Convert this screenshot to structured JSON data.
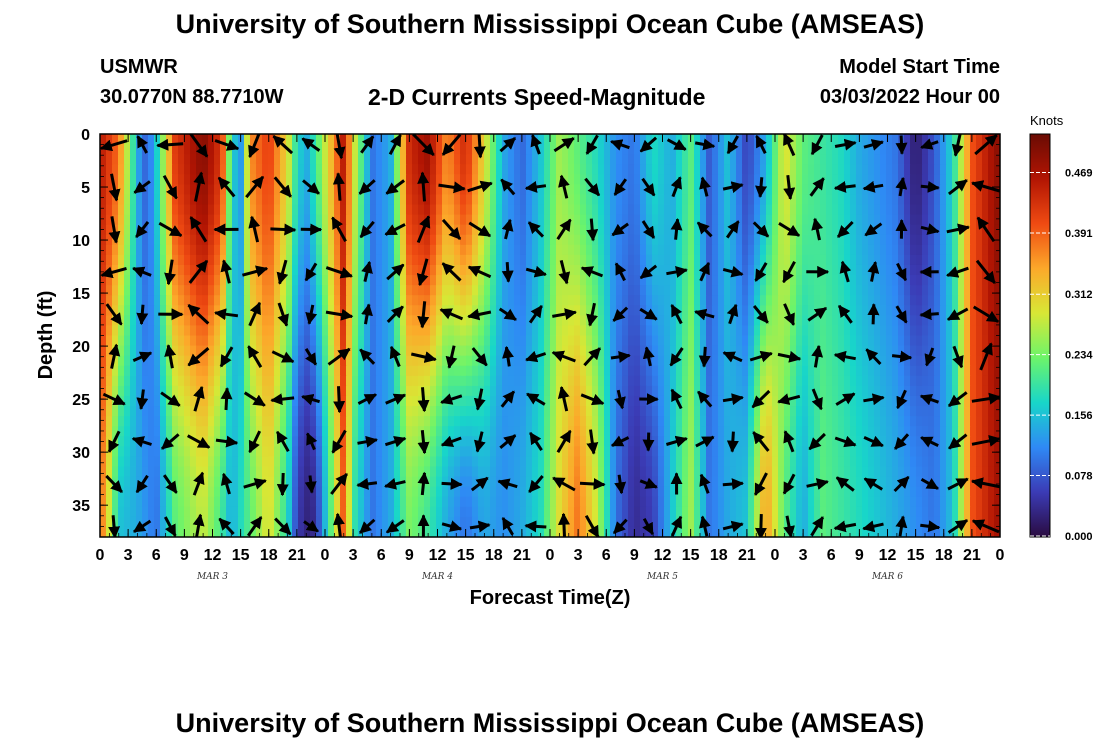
{
  "header": {
    "title": "University of Southern Mississippi Ocean Cube (AMSEAS)",
    "station": "USMWR",
    "coordinates": "30.0770N  88.7710W",
    "subtitle": "2-D Currents Speed-Magnitude",
    "model_start_label": "Model Start Time",
    "model_start_value": "03/03/2022 Hour 00"
  },
  "footer": {
    "title": "University of Southern Mississippi Ocean Cube (AMSEAS)"
  },
  "colorbar": {
    "units": "Knots",
    "ticks": [
      "0.000",
      "0.078",
      "0.156",
      "0.234",
      "0.312",
      "0.391",
      "0.469"
    ],
    "min": 0,
    "max": 0.52,
    "colors": [
      "#2a0b40",
      "#3b3bb5",
      "#2f89f5",
      "#18d6c9",
      "#6cf46a",
      "#d8e735",
      "#fca82a",
      "#ef4a12",
      "#b21503",
      "#6a0b03"
    ]
  },
  "chart_data": {
    "type": "heatmap",
    "xlabel": "Forecast Time(Z)",
    "ylabel": "Depth (ft)",
    "x_range_hours": [
      0,
      96
    ],
    "y_range_ft": [
      0,
      38
    ],
    "y_reversed": true,
    "x_ticks": [
      "0",
      "3",
      "6",
      "9",
      "12",
      "15",
      "18",
      "21",
      "0",
      "3",
      "6",
      "9",
      "12",
      "15",
      "18",
      "21",
      "0",
      "3",
      "6",
      "9",
      "12",
      "15",
      "18",
      "21",
      "0",
      "3",
      "6",
      "9",
      "12",
      "15",
      "18",
      "21",
      "0"
    ],
    "y_ticks": [
      "0",
      "5",
      "10",
      "15",
      "20",
      "25",
      "30",
      "35"
    ],
    "y_tick_values": [
      0,
      5,
      10,
      15,
      20,
      25,
      30,
      35
    ],
    "day_labels": [
      {
        "label": "MAR 3",
        "hour": 12
      },
      {
        "label": "MAR 4",
        "hour": 36
      },
      {
        "label": "MAR 5",
        "hour": 60
      },
      {
        "label": "MAR 6",
        "hour": 84
      }
    ],
    "speed_profile_knots": [
      {
        "hour": 0,
        "surface": 0.46,
        "bottom": 0.4
      },
      {
        "hour": 2,
        "surface": 0.38,
        "bottom": 0.16
      },
      {
        "hour": 4,
        "surface": 0.14,
        "bottom": 0.14
      },
      {
        "hour": 5,
        "surface": 0.08,
        "bottom": 0.12
      },
      {
        "hour": 6,
        "surface": 0.16,
        "bottom": 0.1
      },
      {
        "hour": 8,
        "surface": 0.42,
        "bottom": 0.22
      },
      {
        "hour": 11,
        "surface": 0.5,
        "bottom": 0.28
      },
      {
        "hour": 13,
        "surface": 0.42,
        "bottom": 0.2
      },
      {
        "hour": 14,
        "surface": 0.18,
        "bottom": 0.14
      },
      {
        "hour": 15,
        "surface": 0.12,
        "bottom": 0.18
      },
      {
        "hour": 16,
        "surface": 0.36,
        "bottom": 0.22
      },
      {
        "hour": 18,
        "surface": 0.42,
        "bottom": 0.3
      },
      {
        "hour": 20,
        "surface": 0.3,
        "bottom": 0.18
      },
      {
        "hour": 21,
        "surface": 0.18,
        "bottom": 0.06
      },
      {
        "hour": 22,
        "surface": 0.14,
        "bottom": 0.03
      },
      {
        "hour": 23,
        "surface": 0.2,
        "bottom": 0.04
      },
      {
        "hour": 25,
        "surface": 0.36,
        "bottom": 0.26
      },
      {
        "hour": 26,
        "surface": 0.46,
        "bottom": 0.4
      },
      {
        "hour": 27,
        "surface": 0.3,
        "bottom": 0.2
      },
      {
        "hour": 29,
        "surface": 0.1,
        "bottom": 0.1
      },
      {
        "hour": 31,
        "surface": 0.14,
        "bottom": 0.14
      },
      {
        "hour": 33,
        "surface": 0.44,
        "bottom": 0.24
      },
      {
        "hour": 35,
        "surface": 0.48,
        "bottom": 0.2
      },
      {
        "hour": 37,
        "surface": 0.36,
        "bottom": 0.14
      },
      {
        "hour": 39,
        "surface": 0.44,
        "bottom": 0.1
      },
      {
        "hour": 41,
        "surface": 0.3,
        "bottom": 0.14
      },
      {
        "hour": 43,
        "surface": 0.14,
        "bottom": 0.12
      },
      {
        "hour": 45,
        "surface": 0.09,
        "bottom": 0.14
      },
      {
        "hour": 47,
        "surface": 0.16,
        "bottom": 0.18
      },
      {
        "hour": 49,
        "surface": 0.26,
        "bottom": 0.3
      },
      {
        "hour": 51,
        "surface": 0.22,
        "bottom": 0.38
      },
      {
        "hour": 53,
        "surface": 0.18,
        "bottom": 0.28
      },
      {
        "hour": 55,
        "surface": 0.12,
        "bottom": 0.1
      },
      {
        "hour": 57,
        "surface": 0.1,
        "bottom": 0.04
      },
      {
        "hour": 59,
        "surface": 0.18,
        "bottom": 0.06
      },
      {
        "hour": 61,
        "surface": 0.14,
        "bottom": 0.16
      },
      {
        "hour": 63,
        "surface": 0.22,
        "bottom": 0.26
      },
      {
        "hour": 65,
        "surface": 0.08,
        "bottom": 0.1
      },
      {
        "hour": 67,
        "surface": 0.16,
        "bottom": 0.14
      },
      {
        "hour": 69,
        "surface": 0.06,
        "bottom": 0.16
      },
      {
        "hour": 71,
        "surface": 0.14,
        "bottom": 0.36
      },
      {
        "hour": 73,
        "surface": 0.3,
        "bottom": 0.22
      },
      {
        "hour": 75,
        "surface": 0.22,
        "bottom": 0.14
      },
      {
        "hour": 77,
        "surface": 0.2,
        "bottom": 0.22
      },
      {
        "hour": 79,
        "surface": 0.18,
        "bottom": 0.2
      },
      {
        "hour": 81,
        "surface": 0.14,
        "bottom": 0.18
      },
      {
        "hour": 83,
        "surface": 0.12,
        "bottom": 0.16
      },
      {
        "hour": 85,
        "surface": 0.1,
        "bottom": 0.14
      },
      {
        "hour": 87,
        "surface": 0.02,
        "bottom": 0.12
      },
      {
        "hour": 89,
        "surface": 0.08,
        "bottom": 0.1
      },
      {
        "hour": 91,
        "surface": 0.18,
        "bottom": 0.16
      },
      {
        "hour": 93,
        "surface": 0.4,
        "bottom": 0.4
      },
      {
        "hour": 96,
        "surface": 0.5,
        "bottom": 0.48
      }
    ],
    "vector_spacing": {
      "hours": 3,
      "feet": 4
    },
    "vectors_shown": true
  }
}
